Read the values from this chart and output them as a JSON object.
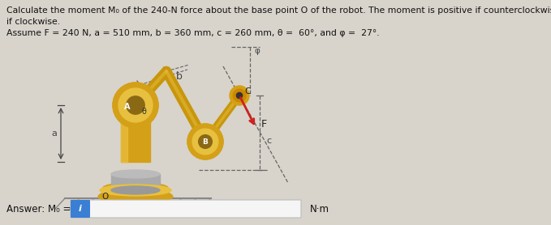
{
  "title_line1": "Calculate the moment M₀ of the 240-N force about the base point O of the robot. The moment is positive if counterclockwise, negative",
  "title_line2": "if clockwise.",
  "param_line": "Assume F = 240 N, a = 510 mm, b = 360 mm, c = 260 mm, θ =  60°, and φ =  27°.",
  "answer_label": "Answer: M₀ =",
  "answer_unit": "N·m",
  "bg_color": "#d8d4cc",
  "input_box_color": "#3a7fd4",
  "text_color": "#111111",
  "font_size_title": 7.8,
  "font_size_answer": 8.5,
  "gold_dark": "#b8860b",
  "gold_mid": "#d4a017",
  "gold_light": "#e8c040",
  "silver": "#aaaaaa",
  "arm_color": "#c8960c",
  "joint_dark": "#8b6914",
  "dashed_color": "#666666",
  "force_color": "#cc2222",
  "dim_color": "#444444"
}
